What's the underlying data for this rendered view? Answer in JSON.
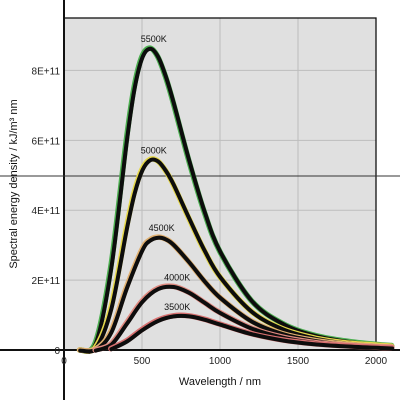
{
  "chart_data": {
    "type": "line",
    "title": "",
    "xlabel": "Wavelength / nm",
    "ylabel": "Spectral energy density / kJ/m³ nm",
    "xlim": [
      0,
      2000
    ],
    "ylim": [
      0,
      950000000000
    ],
    "x_ticks": [
      0,
      500,
      1000,
      1500,
      2000
    ],
    "x_tick_labels": [
      "0",
      "500",
      "1000",
      "1500",
      "2000"
    ],
    "y_ticks": [
      0,
      200000000000,
      400000000000,
      600000000000,
      800000000000
    ],
    "y_tick_labels": [
      "0",
      "2E+11",
      "4E+11",
      "6E+11",
      "8E+11"
    ],
    "grid": true,
    "legend": "none",
    "colors": {
      "plot_background": "#e0e0e0",
      "grid": "#bdbdbd",
      "curve": "#0d0d0d",
      "highlights": [
        "#4caf50",
        "#e6d84a",
        "#e0b070",
        "#e08a80",
        "#d87070"
      ]
    },
    "series": [
      {
        "name": "5500K",
        "x": [
          100,
          200,
          300,
          400,
          450,
          500,
          550,
          600,
          650,
          700,
          800,
          900,
          1000,
          1200,
          1400,
          1600,
          1800,
          2000,
          2100
        ],
        "y": [
          0,
          20000000000,
          238000000000,
          603000000000,
          753000000000,
          840000000000,
          864000000000,
          840000000000,
          783000000000,
          708000000000,
          542000000000,
          394000000000,
          281000000000,
          142000000000,
          76000000000,
          43000000000,
          26000000000,
          16000000000,
          13000000000
        ]
      },
      {
        "name": "5000K",
        "x": [
          100,
          200,
          300,
          400,
          450,
          500,
          550,
          600,
          650,
          700,
          800,
          900,
          1000,
          1200,
          1400,
          1600,
          1800,
          2000,
          2100
        ],
        "y": [
          0,
          7000000000,
          120000000000,
          350000000000,
          451000000000,
          517000000000,
          545000000000,
          541000000000,
          514000000000,
          474000000000,
          377000000000,
          284000000000,
          209000000000,
          111000000000,
          61000000000,
          35000000000,
          21000000000,
          14000000000,
          11000000000
        ]
      },
      {
        "name": "4500K",
        "x": [
          100,
          200,
          300,
          400,
          500,
          550,
          600,
          650,
          700,
          800,
          900,
          1000,
          1200,
          1400,
          1600,
          1800,
          2000,
          2100
        ],
        "y": [
          0,
          2000000000,
          52000000000,
          179000000000,
          288000000000,
          315000000000,
          323000000000,
          318000000000,
          302000000000,
          252000000000,
          197000000000,
          150000000000,
          83000000000,
          47000000000,
          28000000000,
          17000000000,
          11000000000,
          9000000000
        ]
      },
      {
        "name": "4000K",
        "x": [
          200,
          300,
          400,
          500,
          600,
          700,
          800,
          900,
          1000,
          1200,
          1400,
          1600,
          1800,
          2000,
          2100
        ],
        "y": [
          0,
          17000000000,
          77000000000,
          140000000000,
          176000000000,
          182000000000,
          165000000000,
          136000000000,
          107000000000,
          63000000000,
          37000000000,
          22000000000,
          14000000000,
          9000000000,
          8000000000
        ]
      },
      {
        "name": "3500K",
        "x": [
          300,
          400,
          500,
          600,
          700,
          800,
          900,
          1000,
          1200,
          1400,
          1600,
          1800,
          2000,
          2100
        ],
        "y": [
          4000000000,
          26000000000,
          59000000000,
          85000000000,
          98000000000,
          98000000000,
          88000000000,
          74000000000,
          47000000000,
          29000000000,
          18000000000,
          12000000000,
          8000000000,
          6000000000
        ]
      }
    ]
  }
}
